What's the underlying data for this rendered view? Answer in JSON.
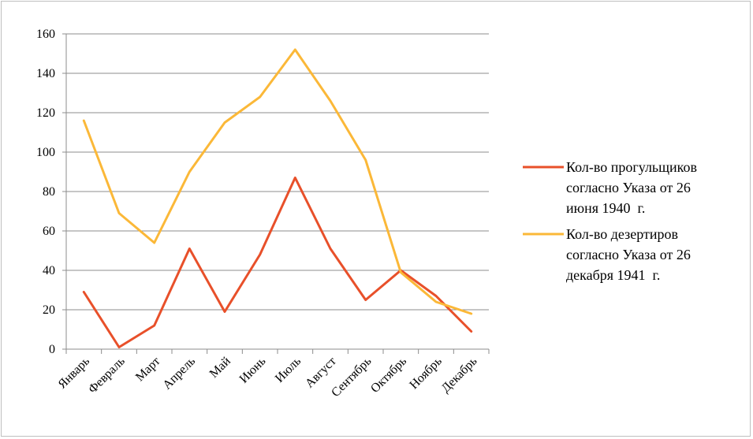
{
  "chart_data": {
    "type": "line",
    "categories": [
      "Январь",
      "Февраль",
      "Март",
      "Апрель",
      "Май",
      "Июнь",
      "Июль",
      "Август",
      "Сентябрь",
      "Октябрь",
      "Ноябрь",
      "Декабрь"
    ],
    "series": [
      {
        "name": "Кол-во прогульщиков согласно Указа от 26 июня 1940  г.",
        "legend_lines": [
          "Кол-во прогульщиков",
          "согласно Указа от 26",
          "июня 1940  г."
        ],
        "color": "#e8502a",
        "values": [
          29,
          1,
          12,
          51,
          19,
          48,
          87,
          51,
          25,
          40,
          27,
          9
        ]
      },
      {
        "name": "Кол-во дезертиров согласно Указа от 26 декабря 1941  г.",
        "legend_lines": [
          "Кол-во дезертиров",
          "согласно Указа от 26",
          "декабря 1941  г."
        ],
        "color": "#fbb838",
        "values": [
          116,
          69,
          54,
          90,
          115,
          128,
          152,
          126,
          96,
          39,
          24,
          18
        ]
      }
    ],
    "ylim": [
      0,
      160
    ],
    "yticks": [
      0,
      20,
      40,
      60,
      80,
      100,
      120,
      140,
      160
    ],
    "grid": true,
    "legend": "right",
    "title": "",
    "xlabel": "",
    "ylabel": ""
  }
}
